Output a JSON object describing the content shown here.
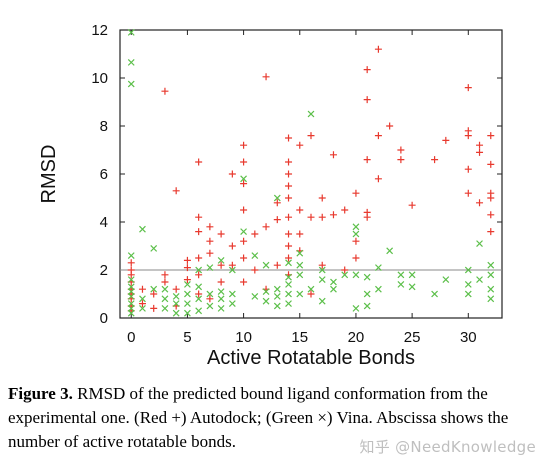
{
  "chart_data": {
    "type": "scatter",
    "title": "",
    "xlabel": "Active Rotatable Bonds",
    "ylabel": "RMSD",
    "xlim": [
      -1,
      33
    ],
    "ylim": [
      0,
      12
    ],
    "xticks": [
      0,
      5,
      10,
      15,
      20,
      25,
      30
    ],
    "yticks": [
      0,
      2,
      4,
      6,
      8,
      10,
      12
    ],
    "reference_line": 2,
    "colors": {
      "autodock": "#e8392e",
      "vina": "#5cbf4a",
      "reference_line": "#888888"
    },
    "series": [
      {
        "marker": "plus",
        "color": "#e8392e",
        "points": [
          [
            0,
            0.3
          ],
          [
            0,
            0.5
          ],
          [
            0,
            0.8
          ],
          [
            0,
            1.0
          ],
          [
            0,
            1.2
          ],
          [
            0,
            1.5
          ],
          [
            0,
            1.8
          ],
          [
            0,
            2.0
          ],
          [
            0,
            2.3
          ],
          [
            1,
            0.6
          ],
          [
            1,
            1.2
          ],
          [
            2,
            0.4
          ],
          [
            2,
            1.0
          ],
          [
            3,
            1.5
          ],
          [
            3,
            1.8
          ],
          [
            3,
            9.45
          ],
          [
            4,
            0.5
          ],
          [
            4,
            1.2
          ],
          [
            4,
            5.3
          ],
          [
            5,
            1.6
          ],
          [
            5,
            2.1
          ],
          [
            5,
            2.4
          ],
          [
            6,
            1.0
          ],
          [
            6,
            1.8
          ],
          [
            6,
            2.5
          ],
          [
            6,
            3.6
          ],
          [
            6,
            4.2
          ],
          [
            6,
            6.5
          ],
          [
            7,
            0.8
          ],
          [
            7,
            2.7
          ],
          [
            7,
            3.2
          ],
          [
            7,
            3.8
          ],
          [
            8,
            1.5
          ],
          [
            8,
            2.2
          ],
          [
            8,
            3.5
          ],
          [
            9,
            2.2
          ],
          [
            9,
            3.0
          ],
          [
            9,
            6.0
          ],
          [
            10,
            1.5
          ],
          [
            10,
            2.5
          ],
          [
            10,
            3.2
          ],
          [
            10,
            4.5
          ],
          [
            10,
            5.6
          ],
          [
            10,
            6.5
          ],
          [
            10,
            7.2
          ],
          [
            11,
            2.0
          ],
          [
            11,
            3.5
          ],
          [
            12,
            1.2
          ],
          [
            12,
            3.8
          ],
          [
            12,
            10.05
          ],
          [
            13,
            2.2
          ],
          [
            13,
            4.1
          ],
          [
            13,
            4.8
          ],
          [
            14,
            1.8
          ],
          [
            14,
            2.5
          ],
          [
            14,
            3.0
          ],
          [
            14,
            3.5
          ],
          [
            14,
            4.2
          ],
          [
            14,
            5.0
          ],
          [
            14,
            5.5
          ],
          [
            14,
            6.0
          ],
          [
            14,
            6.5
          ],
          [
            14,
            7.5
          ],
          [
            15,
            2.8
          ],
          [
            15,
            3.5
          ],
          [
            15,
            4.5
          ],
          [
            15,
            7.2
          ],
          [
            16,
            1.0
          ],
          [
            16,
            4.2
          ],
          [
            16,
            7.6
          ],
          [
            17,
            2.2
          ],
          [
            17,
            4.2
          ],
          [
            17,
            5.0
          ],
          [
            18,
            4.3
          ],
          [
            18,
            6.8
          ],
          [
            19,
            2.0
          ],
          [
            19,
            4.5
          ],
          [
            20,
            2.5
          ],
          [
            20,
            3.2
          ],
          [
            20,
            5.2
          ],
          [
            21,
            4.2
          ],
          [
            21,
            4.4
          ],
          [
            21,
            6.6
          ],
          [
            21,
            9.1
          ],
          [
            21,
            10.35
          ],
          [
            22,
            5.8
          ],
          [
            22,
            7.6
          ],
          [
            22,
            11.2
          ],
          [
            23,
            8.0
          ],
          [
            24,
            6.6
          ],
          [
            24,
            7.0
          ],
          [
            25,
            4.7
          ],
          [
            27,
            6.6
          ],
          [
            28,
            7.4
          ],
          [
            30,
            5.2
          ],
          [
            30,
            6.2
          ],
          [
            30,
            7.6
          ],
          [
            30,
            7.8
          ],
          [
            30,
            9.6
          ],
          [
            31,
            4.8
          ],
          [
            31,
            6.9
          ],
          [
            31,
            7.2
          ],
          [
            32,
            3.6
          ],
          [
            32,
            4.3
          ],
          [
            32,
            5.0
          ],
          [
            32,
            5.2
          ],
          [
            32,
            6.4
          ],
          [
            32,
            7.6
          ]
        ]
      },
      {
        "marker": "x",
        "color": "#5cbf4a",
        "points": [
          [
            0,
            0.2
          ],
          [
            0,
            0.4
          ],
          [
            0,
            0.6
          ],
          [
            0,
            0.9
          ],
          [
            0,
            1.1
          ],
          [
            0,
            1.3
          ],
          [
            0,
            1.6
          ],
          [
            0,
            2.6
          ],
          [
            0,
            9.75
          ],
          [
            0,
            10.65
          ],
          [
            0,
            11.9
          ],
          [
            1,
            0.4
          ],
          [
            1,
            0.8
          ],
          [
            1,
            3.7
          ],
          [
            2,
            1.2
          ],
          [
            2,
            2.9
          ],
          [
            3,
            0.4
          ],
          [
            3,
            0.8
          ],
          [
            3,
            1.2
          ],
          [
            4,
            0.2
          ],
          [
            4,
            0.6
          ],
          [
            4,
            0.9
          ],
          [
            5,
            0.2
          ],
          [
            5,
            0.6
          ],
          [
            5,
            1.0
          ],
          [
            5,
            1.4
          ],
          [
            6,
            0.3
          ],
          [
            6,
            0.8
          ],
          [
            6,
            1.3
          ],
          [
            6,
            2.0
          ],
          [
            7,
            0.5
          ],
          [
            7,
            1.0
          ],
          [
            7,
            2.1
          ],
          [
            8,
            0.4
          ],
          [
            8,
            0.8
          ],
          [
            8,
            1.1
          ],
          [
            8,
            2.4
          ],
          [
            9,
            0.6
          ],
          [
            9,
            1.0
          ],
          [
            9,
            2.0
          ],
          [
            10,
            3.6
          ],
          [
            10,
            5.8
          ],
          [
            11,
            0.9
          ],
          [
            11,
            2.6
          ],
          [
            12,
            0.7
          ],
          [
            12,
            1.1
          ],
          [
            12,
            2.2
          ],
          [
            13,
            0.5
          ],
          [
            13,
            0.9
          ],
          [
            13,
            1.2
          ],
          [
            13,
            5.0
          ],
          [
            14,
            0.6
          ],
          [
            14,
            1.0
          ],
          [
            14,
            1.4
          ],
          [
            14,
            1.7
          ],
          [
            14,
            2.3
          ],
          [
            15,
            1.0
          ],
          [
            15,
            1.8
          ],
          [
            15,
            2.2
          ],
          [
            15,
            2.7
          ],
          [
            16,
            1.2
          ],
          [
            16,
            8.5
          ],
          [
            17,
            0.7
          ],
          [
            17,
            1.6
          ],
          [
            17,
            2.0
          ],
          [
            18,
            1.2
          ],
          [
            18,
            1.5
          ],
          [
            19,
            1.8
          ],
          [
            20,
            0.4
          ],
          [
            20,
            1.8
          ],
          [
            20,
            3.5
          ],
          [
            20,
            3.8
          ],
          [
            21,
            0.5
          ],
          [
            21,
            1.0
          ],
          [
            21,
            1.7
          ],
          [
            22,
            1.2
          ],
          [
            22,
            2.1
          ],
          [
            23,
            2.8
          ],
          [
            24,
            1.4
          ],
          [
            24,
            1.8
          ],
          [
            25,
            1.3
          ],
          [
            25,
            1.8
          ],
          [
            27,
            1.0
          ],
          [
            28,
            1.6
          ],
          [
            30,
            1.0
          ],
          [
            30,
            1.4
          ],
          [
            30,
            2.0
          ],
          [
            31,
            1.6
          ],
          [
            31,
            3.1
          ],
          [
            32,
            0.8
          ],
          [
            32,
            1.2
          ],
          [
            32,
            1.8
          ],
          [
            32,
            2.2
          ]
        ]
      }
    ]
  },
  "caption": {
    "label": "Figure 3.",
    "text": " RMSD of the predicted bound ligand conformation from the experimental one. (Red +) Autodock; (Green ×) Vina. Abscissa shows the number of active rotatable bonds."
  },
  "watermark": "知乎 @NeedKnowledge"
}
